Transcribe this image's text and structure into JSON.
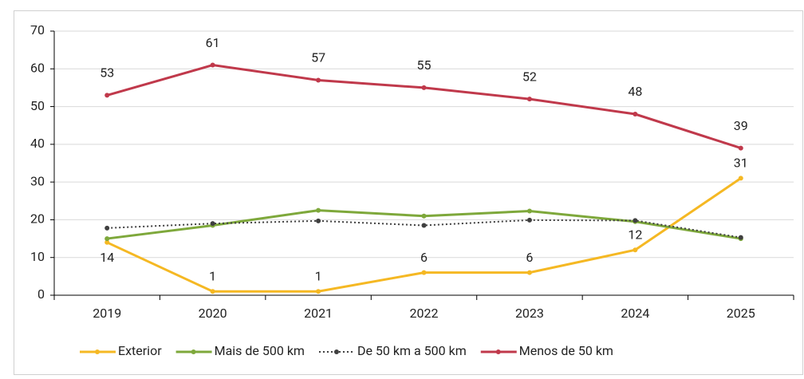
{
  "chart_data": {
    "type": "line",
    "categories": [
      "2019",
      "2020",
      "2021",
      "2022",
      "2023",
      "2024",
      "2025"
    ],
    "series": [
      {
        "name": "Exterior",
        "color": "#f5b823",
        "values": [
          14,
          1,
          1,
          6,
          6,
          12,
          31
        ],
        "data_labels": true
      },
      {
        "name": "Mais de 500 km",
        "color": "#7ea83b",
        "values": [
          15,
          18.5,
          22.5,
          21,
          22.3,
          19.5,
          15
        ]
      },
      {
        "name": "De 50 km a 500 km",
        "color": "#3f3f3f",
        "dash": "dotted",
        "values": [
          17.8,
          19,
          19.7,
          18.5,
          19.9,
          19.8,
          15.3
        ]
      },
      {
        "name": "Menos de 50 km",
        "color": "#c0394b",
        "values": [
          53,
          61,
          57,
          55,
          52,
          48,
          39
        ],
        "data_labels": true
      }
    ],
    "ylim": [
      0,
      70
    ],
    "yticks": [
      0,
      10,
      20,
      30,
      40,
      50,
      60,
      70
    ],
    "grid": true,
    "legend": "bottom"
  }
}
